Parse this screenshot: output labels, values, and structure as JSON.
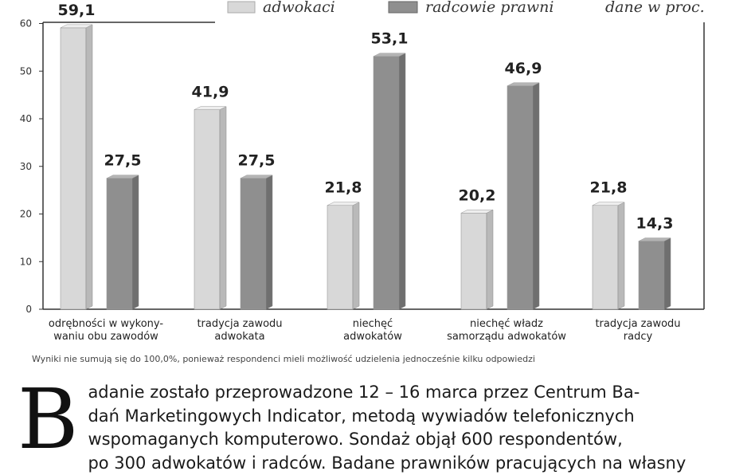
{
  "chart_data": {
    "type": "bar",
    "unit_note": "dane w proc.",
    "categories": [
      [
        "odrębności w wykony-",
        "waniu obu zawodów"
      ],
      [
        "tradycja zawodu",
        "adwokata"
      ],
      [
        "niechęć",
        "adwokatów"
      ],
      [
        "niechęć władz",
        "samorządu adwokatów"
      ],
      [
        "tradycja zawodu",
        "radcy"
      ]
    ],
    "series": [
      {
        "name": "adwokaci",
        "values": [
          59.1,
          41.9,
          21.8,
          20.2,
          21.8
        ],
        "value_labels": [
          "59,1",
          "41,9",
          "21,8",
          "20,2",
          "21,8"
        ]
      },
      {
        "name": "radcowie prawni",
        "values": [
          27.5,
          27.5,
          53.1,
          46.9,
          14.3
        ],
        "value_labels": [
          "27,5",
          "27,5",
          "53,1",
          "46,9",
          "14,3"
        ]
      }
    ],
    "ylim": [
      0,
      60
    ],
    "yticks": [
      "0",
      "10",
      "20",
      "30",
      "40",
      "50",
      "60"
    ],
    "grid": false,
    "legend_position": "top",
    "colors": {
      "adwokaci": {
        "front": "#d8d8d8",
        "side": "#b9b9b9",
        "top": "#eeeeee"
      },
      "radcowie prawni": {
        "front": "#8f8f8f",
        "side": "#6f6f6f",
        "top": "#b4b4b4"
      }
    }
  },
  "footnote": "Wyniki nie sumują się do 100,0%, ponieważ respondenci mieli możliwość udzielenia jednocześnie  kilku odpowiedzi",
  "article": {
    "dropcap": "B",
    "lines": [
      "adanie zostało przeprowadzone 12 – 16 marca przez Centrum Ba-",
      "dań Marketingowych Indicator, metodą wywiadów telefonicznych",
      "wspomaganych komputerowo. Sondaż objął 600 respondentów,",
      "po 300 adwokatów i radców. Badane prawników pracujących na własny"
    ]
  }
}
